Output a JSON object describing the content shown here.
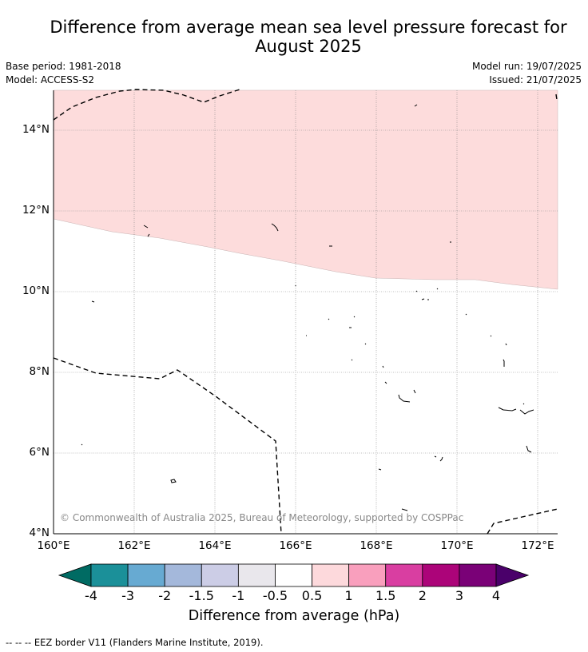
{
  "header": {
    "title_line1": "Difference from average mean sea level pressure forecast for",
    "title_line2": "August 2025",
    "base_period": "Base period: 1981-2018",
    "model": "Model: ACCESS-S2",
    "model_run": "Model run: 19/07/2025",
    "issued": "Issued: 21/07/2025"
  },
  "map": {
    "lat_labels": [
      "14°N",
      "12°N",
      "10°N",
      "8°N",
      "6°N",
      "4°N"
    ],
    "lon_labels": [
      "160°E",
      "162°E",
      "164°E",
      "166°E",
      "168°E",
      "170°E",
      "172°E"
    ],
    "shaded_category": "0.5 to 1 hPa",
    "shaded_color": "#fddcdc",
    "copyright": "© Commonwealth of Australia 2025, Bureau of Meteorology, supported by COSPPac"
  },
  "colorbar": {
    "ticks": [
      "-4",
      "-3",
      "-2",
      "-1.5",
      "-1",
      "-0.5",
      "0.5",
      "1",
      "1.5",
      "2",
      "3",
      "4"
    ],
    "colors": [
      "#006b63",
      "#1b9099",
      "#67aad2",
      "#a4b8db",
      "#cccde6",
      "#e9e7ec",
      "#ffffff",
      "#fdd9dc",
      "#f99fbd",
      "#d93ea1",
      "#ac0479",
      "#7a0177",
      "#4a006a"
    ],
    "label": "Difference from average (hPa)"
  },
  "legend": {
    "eez": "--  --  -- EEZ border V11 (Flanders Marine Institute, 2019)."
  }
}
